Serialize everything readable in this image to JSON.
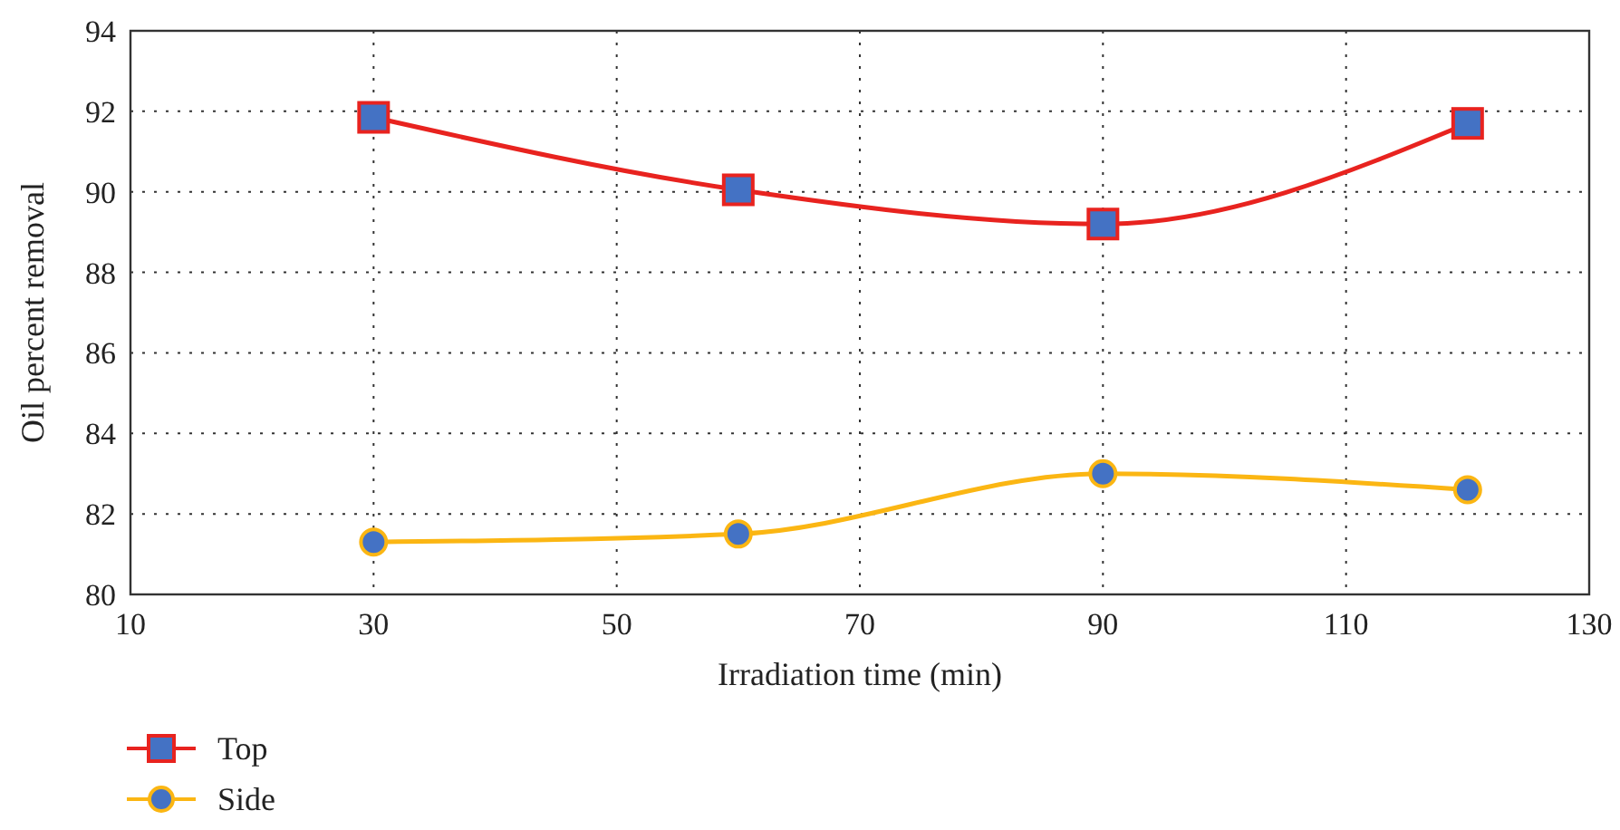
{
  "chart_data": {
    "type": "line",
    "xlabel": "Irradiation time (min)",
    "ylabel": "Oil percent removal",
    "x": [
      30,
      60,
      90,
      120
    ],
    "series": [
      {
        "name": "Top",
        "color": "#e8231f",
        "marker": "square",
        "values": [
          91.85,
          90.05,
          89.2,
          91.7
        ]
      },
      {
        "name": "Side",
        "color": "#fbb613",
        "marker": "circle",
        "values": [
          81.3,
          81.5,
          83.0,
          82.6
        ]
      }
    ],
    "xlim": [
      10,
      130
    ],
    "xticks": [
      10,
      30,
      50,
      70,
      90,
      110,
      130
    ],
    "ylim": [
      80,
      94
    ],
    "yticks": [
      80,
      82,
      84,
      86,
      88,
      90,
      92,
      94
    ],
    "grid": true,
    "legend": "bottom left",
    "line_style": "solid"
  }
}
